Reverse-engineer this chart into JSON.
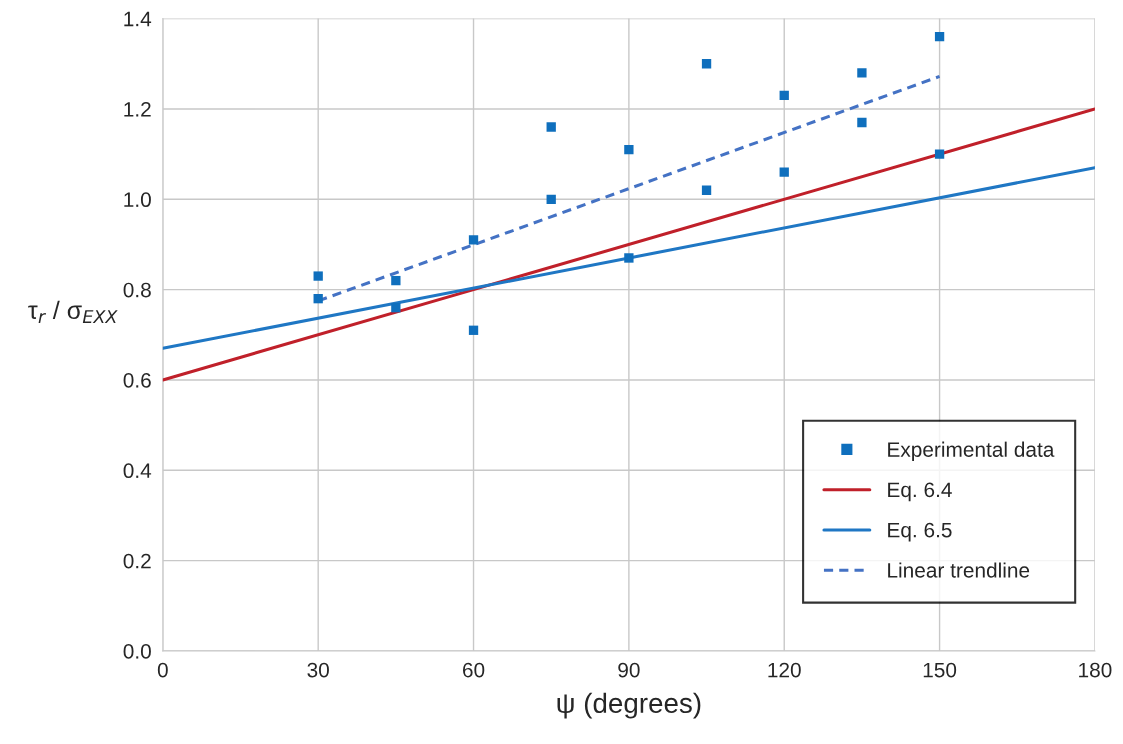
{
  "chart_data": {
    "type": "scatter",
    "xlabel": "ψ (degrees)",
    "ylabel": "τ$_{r}$ / σ$_{EXX}$",
    "xlim": [
      0,
      180
    ],
    "xticks": [
      0,
      30,
      60,
      90,
      120,
      150,
      180
    ],
    "ylim": [
      0,
      1.4
    ],
    "yticks": [
      {
        "value": 0,
        "label": "0.0"
      },
      {
        "value": 0.2,
        "label": "0.2"
      },
      {
        "value": 0.4,
        "label": "0.4"
      },
      {
        "value": 0.6,
        "label": "0.6"
      },
      {
        "value": 0.8,
        "label": "0.8"
      },
      {
        "value": 1.0,
        "label": "1.0"
      },
      {
        "value": 1.2,
        "label": "1.2"
      },
      {
        "value": 1.4,
        "label": "1.4"
      }
    ],
    "grid": true,
    "legend": "bottom right",
    "series": [
      {
        "name": "Experimental data",
        "marker": "square",
        "color": "#0f6fbd",
        "x": [
          30,
          30,
          45,
          45,
          60,
          60,
          75,
          75,
          90,
          90,
          105,
          105,
          120,
          120,
          135,
          135,
          150,
          150
        ],
        "values": [
          0.83,
          0.78,
          0.82,
          0.76,
          0.91,
          0.71,
          1.16,
          1.0,
          1.11,
          0.87,
          1.3,
          1.02,
          1.23,
          1.06,
          1.28,
          1.17,
          1.36,
          1.1
        ]
      },
      {
        "name": "Eq. 6.4",
        "type": "line",
        "color": "#c0202a",
        "x": [
          0,
          180
        ],
        "values": [
          0.6,
          1.2
        ]
      },
      {
        "name": "Eq. 6.5",
        "type": "line",
        "color": "#1f77c4",
        "x": [
          0,
          180
        ],
        "values": [
          0.67,
          1.07
        ]
      },
      {
        "name": "Linear trendline",
        "type": "line",
        "line_style": "dashed",
        "color": "#4472c4",
        "x": [
          30,
          150
        ],
        "values": [
          0.775,
          1.272
        ]
      }
    ]
  }
}
